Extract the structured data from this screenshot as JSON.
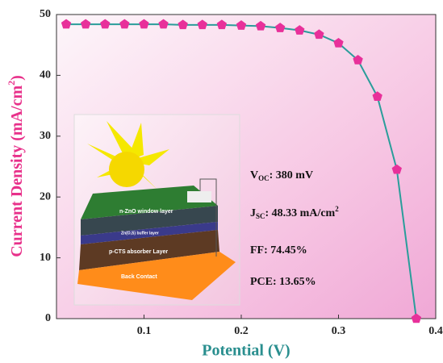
{
  "chart_data": {
    "type": "line",
    "x_label": "Potential (V)",
    "y_label": {
      "text": "Current Density (mA/cm",
      "sup": "2",
      "end": ")"
    },
    "x": [
      0.02,
      0.04,
      0.06,
      0.08,
      0.1,
      0.12,
      0.14,
      0.16,
      0.18,
      0.2,
      0.22,
      0.24,
      0.26,
      0.28,
      0.3,
      0.32,
      0.34,
      0.36,
      0.38
    ],
    "series": [
      {
        "color": "#2a9d9a",
        "marker_color": "#e8309a",
        "values": [
          48.4,
          48.4,
          48.4,
          48.4,
          48.4,
          48.4,
          48.3,
          48.3,
          48.3,
          48.2,
          48.1,
          47.8,
          47.4,
          46.7,
          45.3,
          42.5,
          36.5,
          24.5,
          0
        ]
      }
    ],
    "xlim": [
      0.01,
      0.4
    ],
    "ylim": [
      0,
      50
    ],
    "xticks": [
      0.1,
      0.2,
      0.3,
      0.4
    ],
    "yticks": [
      0,
      10,
      20,
      30,
      40,
      50
    ],
    "annotations": [
      {
        "main": "V",
        "sub": "OC",
        "rest": ": 380 mV"
      },
      {
        "main": "J",
        "sub": "SC",
        "rest": ": 48.33 mA/cm",
        "sup": "2"
      },
      {
        "main": "FF: 74.45%"
      },
      {
        "main": "PCE: 13.65%"
      }
    ],
    "inset_labels": [
      "n-ZnO window layer",
      "Zn(O,S) buffer layer",
      "p-CTS absorber Layer",
      "Back Contact"
    ]
  }
}
